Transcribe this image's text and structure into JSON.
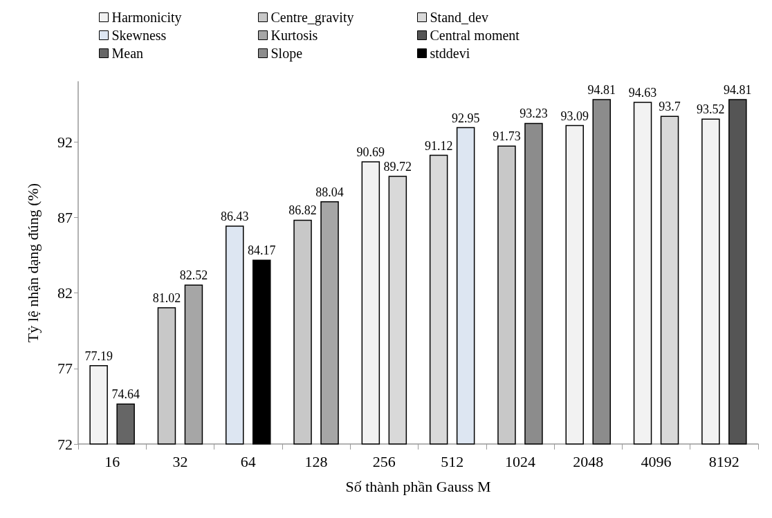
{
  "chart_data": {
    "type": "bar",
    "xlabel": "Số thành phần Gauss M",
    "ylabel": "Tỷ lệ nhận dạng đúng (%)",
    "categories": [
      "16",
      "32",
      "64",
      "128",
      "256",
      "512",
      "1024",
      "2048",
      "4096",
      "8192"
    ],
    "series": [
      {
        "name": "Harmonicity",
        "color": "#f2f2f2",
        "values": [
          77.19,
          null,
          null,
          null,
          90.69,
          null,
          null,
          93.09,
          94.63,
          93.52
        ]
      },
      {
        "name": "Centre_gravity",
        "color": "#c8c8c8",
        "values": [
          null,
          81.02,
          null,
          86.82,
          null,
          null,
          91.73,
          null,
          null,
          null
        ]
      },
      {
        "name": "Stand_dev",
        "color": "#d9d9d9",
        "values": [
          null,
          null,
          null,
          null,
          89.72,
          91.12,
          null,
          null,
          93.7,
          null
        ]
      },
      {
        "name": "Skewness",
        "color": "#dde6f2",
        "values": [
          null,
          null,
          86.43,
          null,
          null,
          92.95,
          null,
          null,
          null,
          null
        ]
      },
      {
        "name": "Kurtosis",
        "color": "#a6a6a6",
        "values": [
          null,
          82.52,
          null,
          88.04,
          null,
          null,
          null,
          null,
          null,
          null
        ]
      },
      {
        "name": "Central moment",
        "color": "#555555",
        "values": [
          null,
          null,
          null,
          null,
          null,
          null,
          null,
          null,
          null,
          94.81
        ]
      },
      {
        "name": "Mean",
        "color": "#666666",
        "values": [
          74.64,
          null,
          null,
          null,
          null,
          null,
          null,
          null,
          null,
          null
        ]
      },
      {
        "name": "Slope",
        "color": "#8c8c8c",
        "values": [
          null,
          null,
          null,
          null,
          null,
          null,
          93.23,
          94.81,
          null,
          null
        ]
      },
      {
        "name": "stddevi",
        "color": "#000000",
        "values": [
          null,
          null,
          84.17,
          null,
          null,
          null,
          null,
          null,
          null,
          null
        ]
      }
    ],
    "ylim": [
      72,
      96
    ],
    "yticks": [
      72,
      77,
      82,
      87,
      92
    ],
    "grid": false,
    "legend": "top",
    "data_labels": true
  }
}
